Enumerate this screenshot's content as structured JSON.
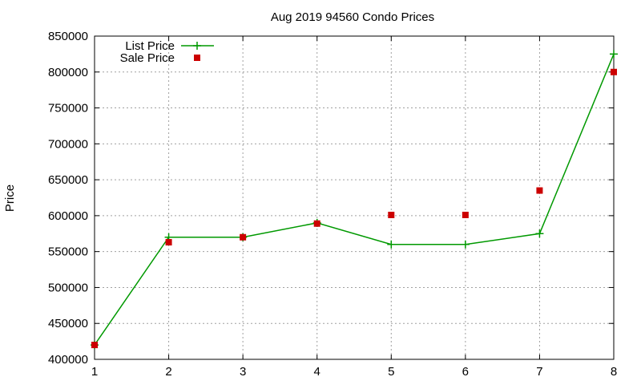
{
  "chart_data": {
    "type": "line",
    "title": "Aug 2019 94560 Condo Prices",
    "xlabel": "",
    "ylabel": "Price",
    "x": [
      1,
      2,
      3,
      4,
      5,
      6,
      7,
      8
    ],
    "xlim": [
      1,
      8
    ],
    "ylim": [
      400000,
      850000
    ],
    "yticks": [
      400000,
      450000,
      500000,
      550000,
      600000,
      650000,
      700000,
      750000,
      800000,
      850000
    ],
    "xticks": [
      1,
      2,
      3,
      4,
      5,
      6,
      7,
      8
    ],
    "grid": true,
    "legend_position": "top-left",
    "series": [
      {
        "name": "List Price",
        "style": "linespoints",
        "marker": "plus",
        "color": "#009900",
        "values": [
          420000,
          570000,
          570000,
          590000,
          560000,
          560000,
          575000,
          825000
        ]
      },
      {
        "name": "Sale Price",
        "style": "points",
        "marker": "square",
        "color": "#cc0000",
        "values": [
          420000,
          563000,
          570000,
          589000,
          601000,
          601000,
          635000,
          800000
        ]
      }
    ]
  }
}
